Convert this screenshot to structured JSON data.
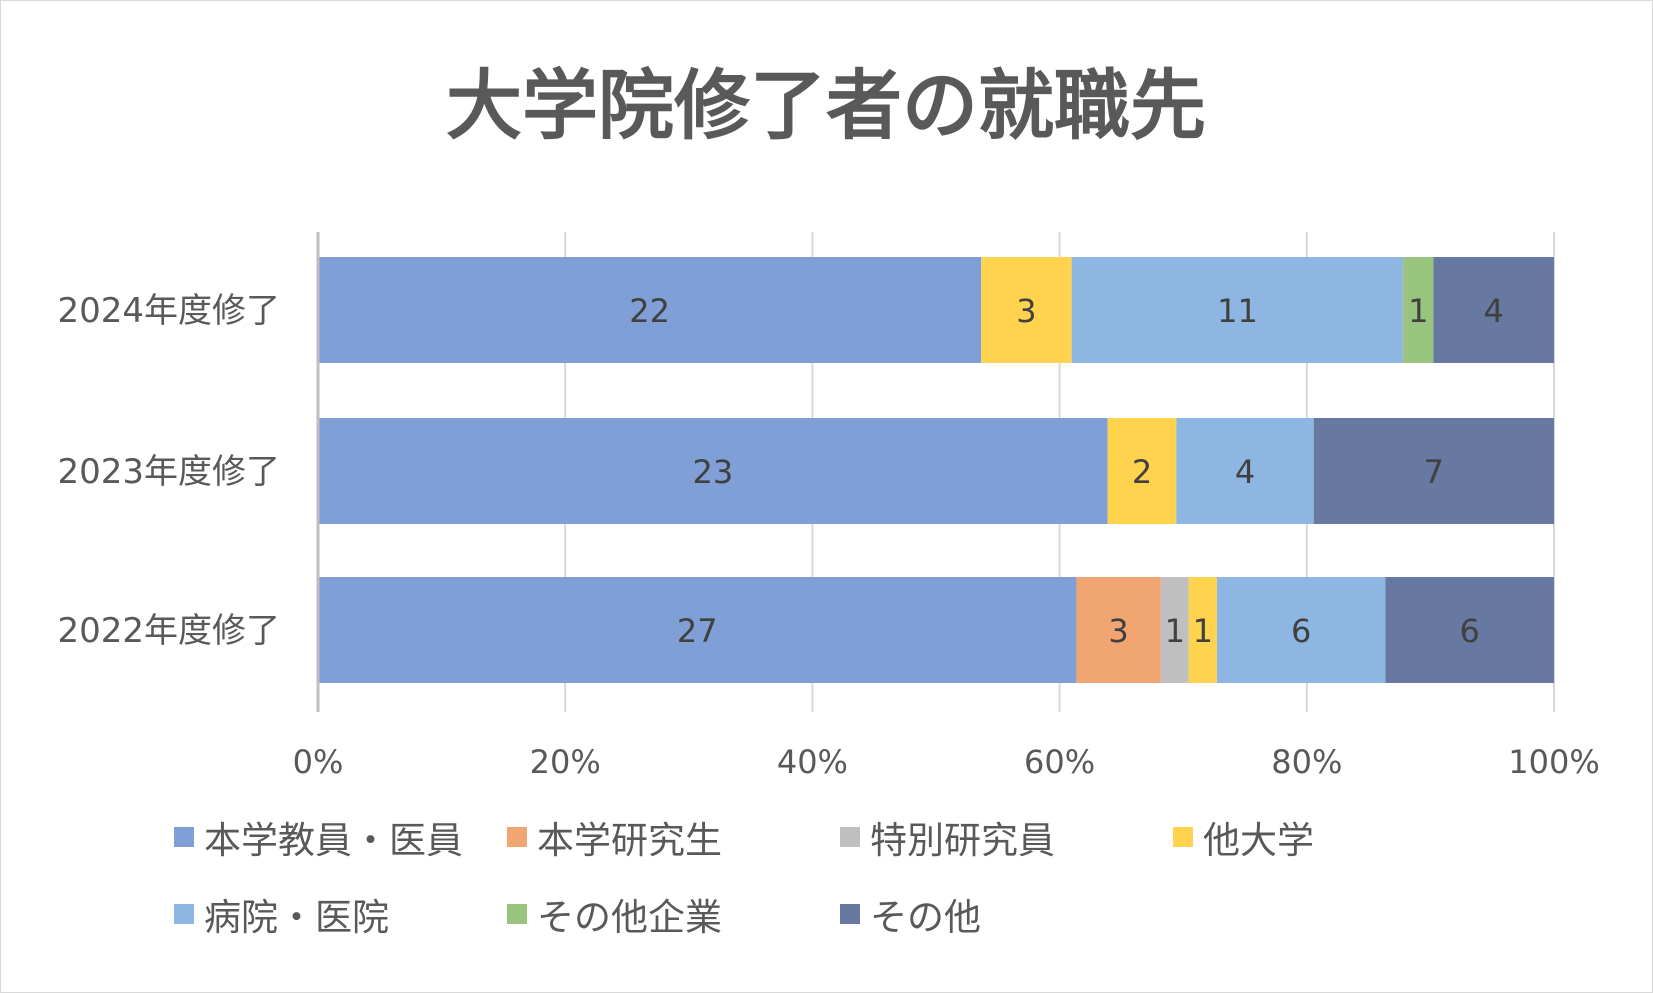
{
  "chart_data": {
    "type": "bar",
    "orientation": "horizontal",
    "stacked": "percent",
    "title": "大学院修了者の就職先",
    "categories": [
      "2024年度修了",
      "2023年度修了",
      "2022年度修了"
    ],
    "xlim": [
      0,
      100
    ],
    "x_ticks": [
      "0%",
      "20%",
      "40%",
      "60%",
      "80%",
      "100%"
    ],
    "grid": true,
    "legend_position": "bottom",
    "series": [
      {
        "name": "本学教員・医員",
        "color": "#7f9fd6",
        "values": [
          22,
          23,
          27
        ]
      },
      {
        "name": "本学研究生",
        "color": "#f1a571",
        "values": [
          0,
          0,
          3
        ]
      },
      {
        "name": "特別研究員",
        "color": "#bfbfbf",
        "values": [
          0,
          0,
          1
        ]
      },
      {
        "name": "他大学",
        "color": "#ffd34d",
        "values": [
          3,
          2,
          1
        ]
      },
      {
        "name": "病院・医院",
        "color": "#8db7e2",
        "values": [
          11,
          4,
          6
        ]
      },
      {
        "name": "その他企業",
        "color": "#99c47d",
        "values": [
          1,
          0,
          0
        ]
      },
      {
        "name": "その他",
        "color": "#6779a0",
        "values": [
          4,
          7,
          6
        ]
      }
    ]
  }
}
